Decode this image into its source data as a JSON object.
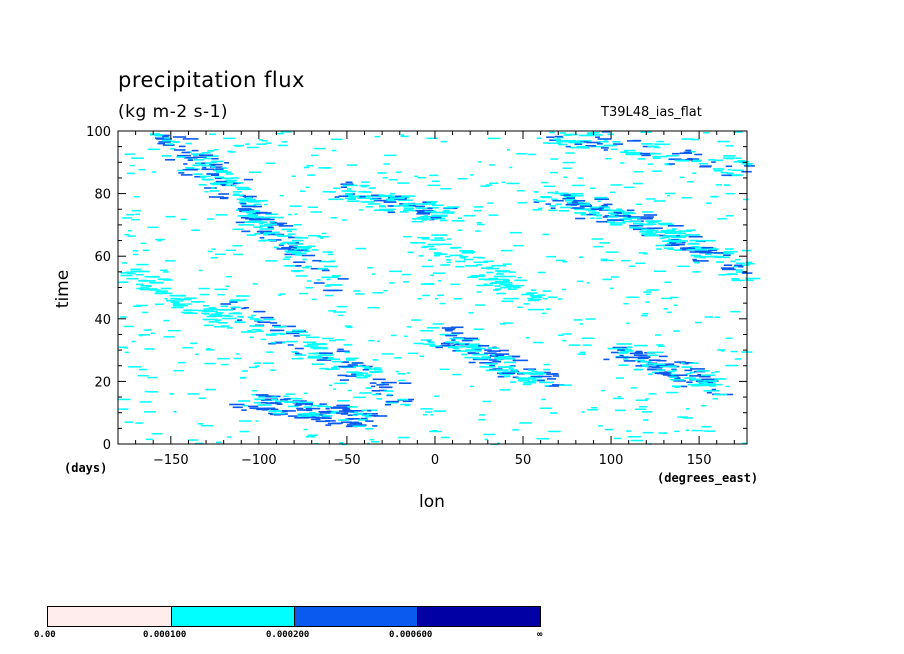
{
  "title": "precipitation flux",
  "units": "(kg m-2 s-1)",
  "run_label": "T39L48_ias_flat",
  "colors": {
    "background": "#ffffff",
    "level1": "#ffecec",
    "level2": "#00ffff",
    "level3": "#0a5af0",
    "level4": "#0000a5",
    "axis": "#000000"
  },
  "chart_data": {
    "type": "heatmap",
    "title": "precipitation flux",
    "xlabel": "lon",
    "xunit": "(degrees_east)",
    "ylabel": "time",
    "yunit": "(days)",
    "xlim": [
      -180,
      177.2
    ],
    "ylim": [
      0,
      100
    ],
    "xticks": [
      -150,
      -100,
      -50,
      0,
      50,
      100,
      150
    ],
    "yticks": [
      0,
      20,
      40,
      60,
      80,
      100
    ],
    "colorbar": {
      "labels": [
        "0.00",
        "0.000100",
        "0.000200",
        "0.000600",
        "∞"
      ],
      "colors": [
        "#ffecec",
        "#00ffff",
        "#0a5af0",
        "#0000a5"
      ]
    },
    "bands": [
      {
        "lon": [
          -160,
          -80
        ],
        "time": [
          100,
          60
        ],
        "peak": 0.00025
      },
      {
        "lon": [
          -140,
          -60
        ],
        "time": [
          95,
          50
        ],
        "peak": 0.0002
      },
      {
        "lon": [
          -120,
          -20
        ],
        "time": [
          45,
          15
        ],
        "peak": 0.00025
      },
      {
        "lon": [
          -110,
          -40
        ],
        "time": [
          14,
          8
        ],
        "peak": 0.0003
      },
      {
        "lon": [
          -60,
          10
        ],
        "time": [
          82,
          72
        ],
        "peak": 0.0002
      },
      {
        "lon": [
          0,
          60
        ],
        "time": [
          35,
          20
        ],
        "peak": 0.00025
      },
      {
        "lon": [
          60,
          120
        ],
        "time": [
          80,
          70
        ],
        "peak": 0.0002
      },
      {
        "lon": [
          100,
          160
        ],
        "time": [
          30,
          18
        ],
        "peak": 0.00025
      },
      {
        "lon": [
          120,
          177
        ],
        "time": [
          70,
          55
        ],
        "peak": 0.0002
      },
      {
        "lon": [
          60,
          177
        ],
        "time": [
          100,
          88
        ],
        "peak": 0.0002
      },
      {
        "lon": [
          -180,
          -100
        ],
        "time": [
          55,
          35
        ],
        "peak": 0.00015
      },
      {
        "lon": [
          -10,
          60
        ],
        "time": [
          65,
          45
        ],
        "peak": 0.00015
      }
    ]
  }
}
